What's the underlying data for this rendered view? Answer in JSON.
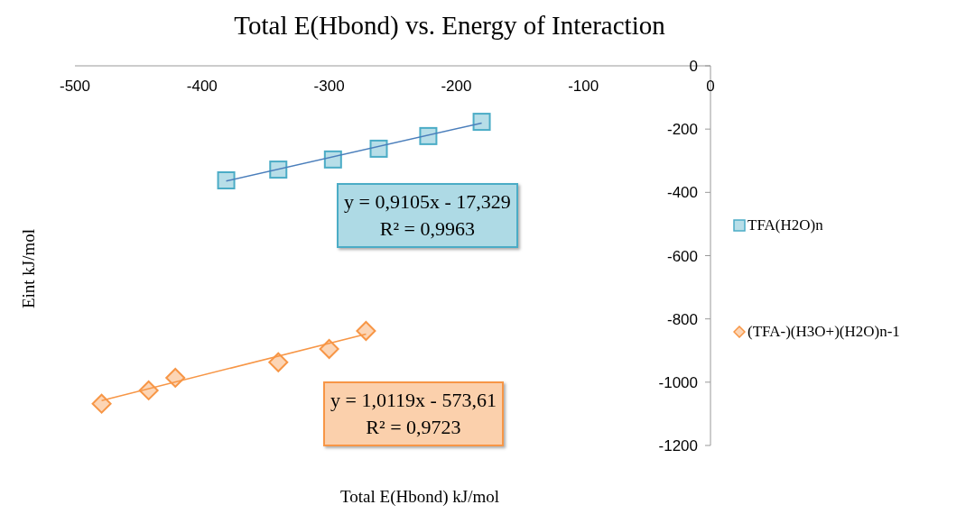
{
  "chart_data": {
    "type": "scatter",
    "title": "Total E(Hbond) vs. Energy of Interaction",
    "xlabel": "Total E(Hbond) kJ/mol",
    "ylabel": "Eint kJ/mol",
    "xlim": [
      -500,
      0
    ],
    "xticks": [
      -500,
      -400,
      -300,
      -200,
      -100,
      0
    ],
    "ylim": [
      -1200,
      0
    ],
    "yticks": [
      -1200,
      -1000,
      -800,
      -600,
      -400,
      -200,
      0
    ],
    "grid": false,
    "legend": "right",
    "series": [
      {
        "name": "TFA(H2O)n",
        "type": "scatter",
        "marker": "square",
        "color": "#4bacc6",
        "x": [
          -381,
          -340,
          -297,
          -261,
          -222,
          -180
        ],
        "values": [
          -362,
          -328,
          -296,
          -262,
          -222,
          -177
        ]
      },
      {
        "name": "(TFA-)(H3O+)(H2O)n-1",
        "type": "scatter",
        "marker": "diamond",
        "color": "#f79646",
        "x": [
          -479,
          -442,
          -421,
          -340,
          -300,
          -271
        ],
        "values": [
          -1068,
          -1026,
          -986,
          -937,
          -895,
          -838
        ]
      },
      {
        "type": "line",
        "marker": "none",
        "color": "#4a7ebb",
        "x": [
          -381,
          -180
        ],
        "values": [
          -364,
          -181
        ]
      },
      {
        "type": "line",
        "marker": "none",
        "color": "#f79646",
        "x": [
          -479,
          -271
        ],
        "values": [
          -1058,
          -848
        ]
      }
    ],
    "annotations": [
      "y = 0,9105x - 17,329\nR² = 0,9963",
      "y = 1,0119x - 573,61\nR² = 0,9723"
    ]
  }
}
